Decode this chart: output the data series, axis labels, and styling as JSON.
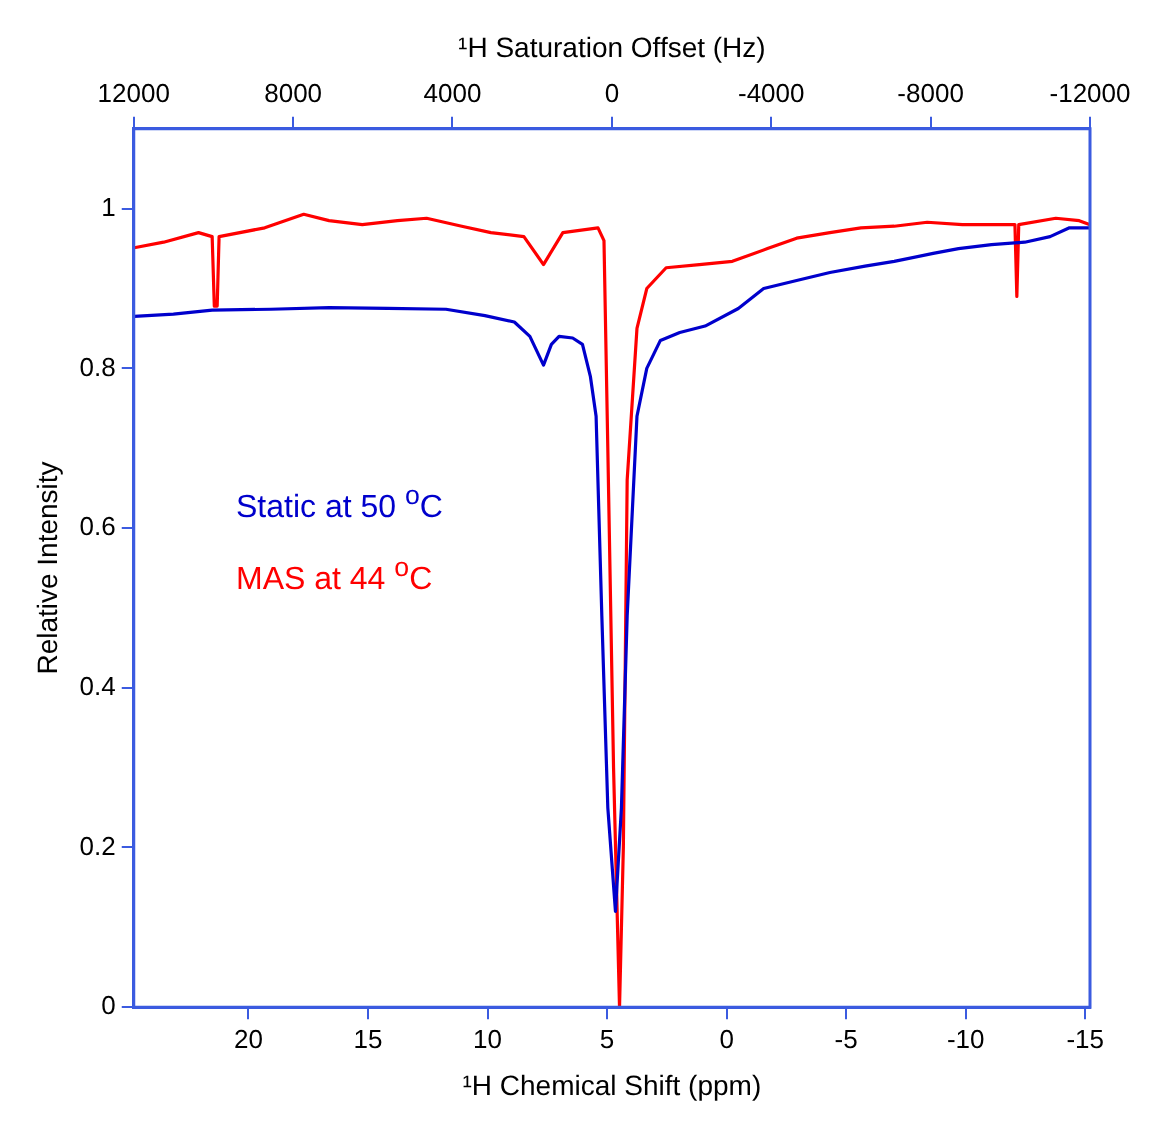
{
  "chart_data": {
    "type": "line",
    "xlabel": "¹H Chemical Shift (ppm)",
    "x2label": "¹H Saturation Offset (Hz)",
    "ylabel": "Relative Intensity",
    "xlim": [
      24.8,
      -15.2
    ],
    "xticks": [
      20,
      15,
      10,
      5,
      0,
      -5,
      -10,
      -15
    ],
    "x2lim": [
      12000,
      -12000
    ],
    "x2ticks": [
      12000,
      8000,
      4000,
      0,
      -4000,
      -8000,
      -12000
    ],
    "ylim": [
      0,
      1.1
    ],
    "yticks": [
      0,
      0.2,
      0.4,
      0.6,
      0.8,
      1
    ],
    "grid": false,
    "legend": "left",
    "marker": "none",
    "line_style": "solid",
    "series": [
      {
        "name": "Static at 50 $^{o}$C",
        "color": "#0000cc",
        "x": [
          24.78,
          23.14,
          21.52,
          19.07,
          16.63,
          14.18,
          11.74,
          10.11,
          8.88,
          8.23,
          7.66,
          7.33,
          7.01,
          6.44,
          6.03,
          5.7,
          5.46,
          5.22,
          4.97,
          4.65,
          4.4,
          4.16,
          3.75,
          3.34,
          2.77,
          1.96,
          0.9,
          -0.49,
          -1.55,
          -2.93,
          -4.32,
          -5.79,
          -7.01,
          -8.64,
          -9.7,
          -11.08,
          -12.47,
          -13.53,
          -14.34,
          -15.2
        ],
        "values": [
          0.865,
          0.868,
          0.873,
          0.874,
          0.876,
          0.875,
          0.874,
          0.866,
          0.858,
          0.84,
          0.804,
          0.83,
          0.84,
          0.838,
          0.83,
          0.79,
          0.74,
          0.49,
          0.25,
          0.12,
          0.25,
          0.49,
          0.74,
          0.8,
          0.835,
          0.845,
          0.853,
          0.875,
          0.9,
          0.91,
          0.92,
          0.928,
          0.934,
          0.944,
          0.95,
          0.955,
          0.958,
          0.965,
          0.976,
          0.976
        ]
      },
      {
        "name": "MAS at 44 $^{o}$C",
        "color": "#ff0000",
        "x": [
          24.78,
          23.55,
          22.09,
          21.52,
          21.43,
          21.31,
          21.23,
          19.32,
          17.69,
          16.63,
          15.24,
          13.77,
          12.55,
          11.08,
          9.86,
          8.48,
          7.66,
          6.85,
          5.38,
          5.13,
          4.97,
          4.73,
          4.48,
          4.32,
          4.16,
          3.75,
          3.34,
          2.53,
          1.14,
          -0.24,
          -1.71,
          -2.93,
          -4.32,
          -5.62,
          -7.01,
          -8.39,
          -9.86,
          -11.08,
          -12.06,
          -12.14,
          -12.22,
          -13.77,
          -14.75,
          -15.2
        ],
        "values": [
          0.951,
          0.958,
          0.97,
          0.965,
          0.878,
          0.878,
          0.965,
          0.976,
          0.993,
          0.985,
          0.98,
          0.985,
          0.988,
          0.978,
          0.97,
          0.965,
          0.93,
          0.97,
          0.976,
          0.96,
          0.7,
          0.3,
          0,
          0.2,
          0.66,
          0.85,
          0.9,
          0.926,
          0.93,
          0.934,
          0.95,
          0.963,
          0.97,
          0.976,
          0.978,
          0.983,
          0.98,
          0.98,
          0.98,
          0.89,
          0.98,
          0.988,
          0.985,
          0.98
        ]
      }
    ]
  }
}
